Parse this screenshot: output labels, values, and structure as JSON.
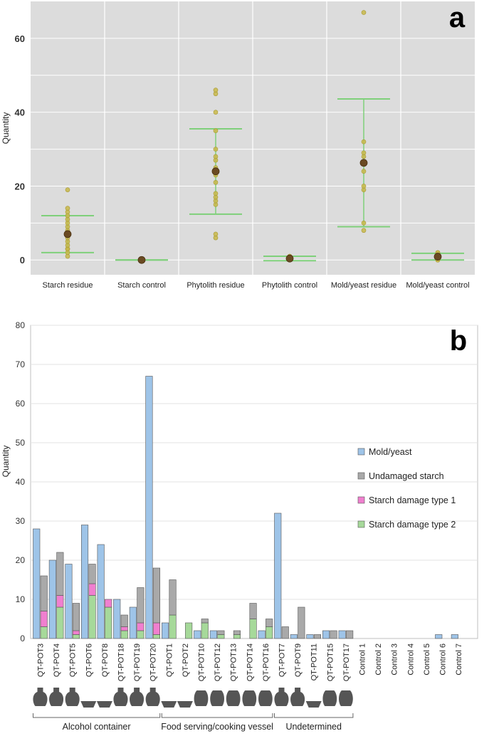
{
  "chart_data": [
    {
      "type": "scatter",
      "panel_label": "a",
      "title": "",
      "xlabel": "",
      "ylabel": "Quantity",
      "ylim": [
        -4,
        70
      ],
      "yticks": [
        0,
        20,
        40,
        60
      ],
      "grid": true,
      "categories": [
        "Starch residue",
        "Starch control",
        "Phytolith residue",
        "Phytolith control",
        "Mold/yeast residue",
        "Mold/yeast control"
      ],
      "points": [
        [
          1,
          2,
          3,
          3,
          4,
          5,
          6,
          7,
          7,
          8,
          9,
          10,
          11,
          12,
          13,
          14,
          19
        ],
        [
          0,
          0,
          0,
          0,
          0,
          0,
          0,
          0,
          0
        ],
        [
          6,
          7,
          15,
          16,
          17,
          18,
          21,
          23,
          24,
          25,
          27,
          28,
          30,
          35,
          40,
          45,
          46
        ],
        [
          0,
          0,
          0,
          1,
          1
        ],
        [
          8,
          10,
          19,
          20,
          24,
          26,
          28,
          29,
          32,
          67
        ],
        [
          0,
          0,
          1,
          1,
          2,
          2
        ]
      ],
      "means": [
        7.0,
        0.0,
        24.0,
        0.4,
        26.3,
        0.9
      ],
      "upper_bar": [
        12.0,
        0.0,
        35.5,
        1.0,
        43.6,
        1.8
      ],
      "lower_bar": [
        2.0,
        0.0,
        12.4,
        -0.2,
        9.0,
        0.0
      ],
      "colors": {
        "background": "#dcdcdc",
        "point": "#c8b84a",
        "point_stroke": "#a89a30",
        "mean": "#6a4a22",
        "bar": "#7fd07a"
      }
    },
    {
      "type": "bar",
      "panel_label": "b",
      "title": "",
      "xlabel": "",
      "ylabel": "Quantity",
      "ylim": [
        0,
        80
      ],
      "yticks": [
        0,
        10,
        20,
        30,
        40,
        50,
        60,
        70,
        80
      ],
      "grid": true,
      "legend_position": "right",
      "categories": [
        "QT-POT3",
        "QT-POT4",
        "QT-POT5",
        "QT-POT6",
        "QT-POT8",
        "QT-POT18",
        "QT-POT19",
        "QT-POT20",
        "QT-POT1",
        "QT-POT2",
        "QT-POT10",
        "QT-POT12",
        "QT-POT13",
        "QT-POT14",
        "QT-POT16",
        "QT-POT7",
        "QT-POT9",
        "QT-POT11",
        "QT-POT15",
        "QT-POT17",
        "Control 1",
        "Control 2",
        "Control 3",
        "Control 4",
        "Control 5",
        "Control 6",
        "Control 7"
      ],
      "series": [
        {
          "name": "Mold/yeast",
          "color": "#9ec4e8",
          "values": [
            28,
            20,
            19,
            29,
            24,
            10,
            8,
            67,
            4,
            0,
            2,
            2,
            0,
            0,
            2,
            32,
            1,
            1,
            2,
            2,
            0,
            0,
            0,
            0,
            0,
            1,
            1
          ]
        },
        {
          "name": "Undamaged starch",
          "color": "#a9a9a9",
          "values": [
            9,
            11,
            7,
            5,
            0,
            3,
            9,
            14,
            9,
            0,
            1,
            1,
            1,
            4,
            2,
            3,
            8,
            1,
            2,
            2,
            0,
            0,
            0,
            0,
            0,
            0,
            0
          ]
        },
        {
          "name": "Starch damage type 1",
          "color": "#f07fcf",
          "values": [
            4,
            3,
            1,
            3,
            2,
            1,
            2,
            3,
            0,
            0,
            0,
            0,
            0,
            0,
            0,
            0,
            0,
            0,
            0,
            0,
            0,
            0,
            0,
            0,
            0,
            0,
            0
          ]
        },
        {
          "name": "Starch damage type 2",
          "color": "#a6d99a",
          "values": [
            3,
            8,
            1,
            11,
            8,
            2,
            2,
            1,
            6,
            4,
            4,
            1,
            1,
            5,
            3,
            0,
            0,
            0,
            0,
            0,
            0,
            0,
            0,
            0,
            0,
            0,
            0
          ]
        }
      ],
      "vessel_shapes": [
        "jar",
        "jar",
        "jar",
        "bowl",
        "bowl",
        "jar",
        "jar",
        "jar",
        "bowl",
        "bowl",
        "pot",
        "pot",
        "pot",
        "pot",
        "pot",
        "jar",
        "jar",
        "bowl",
        "pot",
        "pot"
      ],
      "groups": [
        {
          "label": "Alcohol container",
          "start": 0,
          "end": 7
        },
        {
          "label": "Food serving/cooking vessel",
          "start": 8,
          "end": 14
        },
        {
          "label": "Undetermined",
          "start": 15,
          "end": 19
        }
      ]
    }
  ]
}
